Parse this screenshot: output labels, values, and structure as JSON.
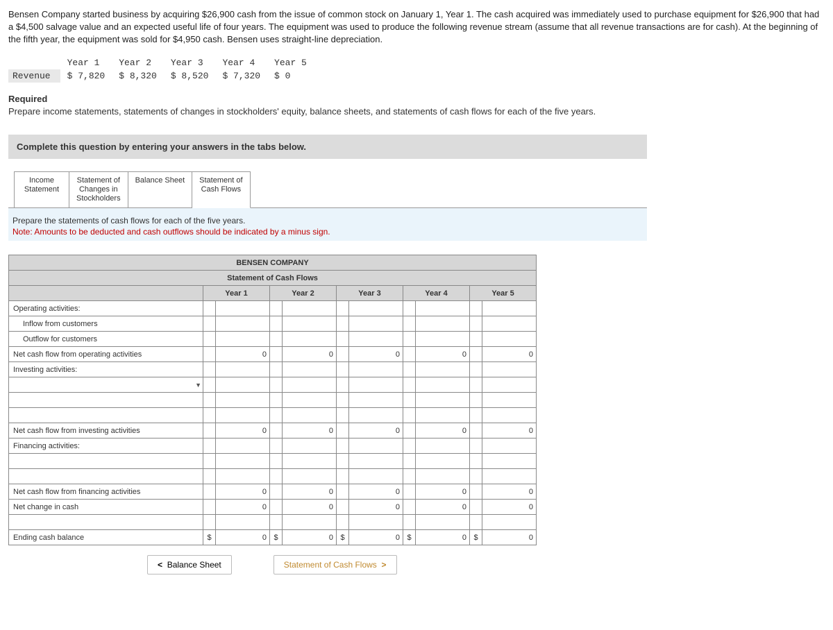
{
  "problem": {
    "text": "Bensen Company started business by acquiring $26,900 cash from the issue of common stock on January 1, Year 1. The cash acquired was immediately used to purchase equipment for $26,900 that had a $4,500 salvage value and an expected useful life of four years. The equipment was used to produce the following revenue stream (assume that all revenue transactions are for cash). At the beginning of the fifth year, the equipment was sold for $4,950 cash. Bensen uses straight-line depreciation."
  },
  "revenue": {
    "row_label": "Revenue",
    "headers": [
      "Year 1",
      "Year 2",
      "Year 3",
      "Year 4",
      "Year 5"
    ],
    "values": [
      "$ 7,820",
      "$ 8,320",
      "$ 8,520",
      "$ 7,320",
      "$ 0"
    ]
  },
  "required": {
    "heading": "Required",
    "text": "Prepare income statements, statements of changes in stockholders' equity, balance sheets, and statements of cash flows for each of the five years."
  },
  "instruction_bar": "Complete this question by entering your answers in the tabs below.",
  "tabs": [
    {
      "label": "Income\nStatement"
    },
    {
      "label": "Statement of\nChanges in\nStockholders"
    },
    {
      "label": "Balance Sheet"
    },
    {
      "label": "Statement of\nCash Flows"
    }
  ],
  "panel": {
    "instruction": "Prepare the statements of cash flows for each of the five years.",
    "note": "Note: Amounts to be deducted and cash outflows should be indicated by a minus sign."
  },
  "cashflow": {
    "company": "BENSEN COMPANY",
    "title": "Statement of Cash Flows",
    "year_headers": [
      "Year 1",
      "Year 2",
      "Year 3",
      "Year 4",
      "Year 5"
    ],
    "rows": {
      "operating_header": "Operating activities:",
      "inflow": "Inflow from customers",
      "outflow": "Outflow for customers",
      "net_operating": "Net cash flow from operating activities",
      "investing_header": "Investing activities:",
      "net_investing": "Net cash flow from investing activities",
      "financing_header": "Financing activities:",
      "net_financing": "Net cash flow from financing activities",
      "net_change": "Net change in cash",
      "ending": "Ending cash balance"
    },
    "zeros": [
      "0",
      "0",
      "0",
      "0",
      "0"
    ],
    "curr": "$"
  },
  "nav": {
    "prev": "Balance Sheet",
    "next": "Statement of Cash Flows"
  },
  "colors": {
    "instruction_bg": "#dcdcdc",
    "panel_bg": "#eaf4fb",
    "note_color": "#c00000",
    "header_bg": "#d6d6d6"
  }
}
